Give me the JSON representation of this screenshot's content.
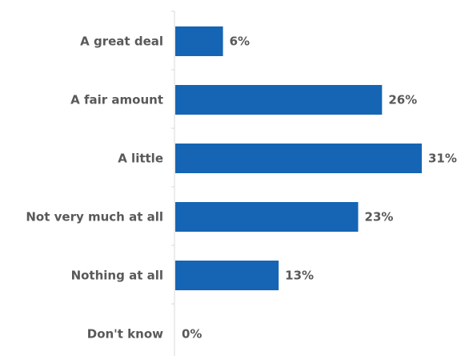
{
  "chart_data": {
    "type": "bar",
    "orientation": "horizontal",
    "title": "",
    "xlabel": "",
    "ylabel": "",
    "categories": [
      "A great deal",
      "A fair amount",
      "A little",
      "Not very much at all",
      "Nothing at all",
      "Don't know"
    ],
    "values": [
      6,
      26,
      31,
      23,
      13,
      0
    ],
    "value_labels": [
      "6%",
      "26%",
      "31%",
      "23%",
      "13%",
      "0%"
    ],
    "xlim": [
      0,
      31
    ],
    "grid": false,
    "legend": "none",
    "bar_color": "#1565B4",
    "axis_color": "#D9D9D9",
    "label_color": "#595959"
  }
}
